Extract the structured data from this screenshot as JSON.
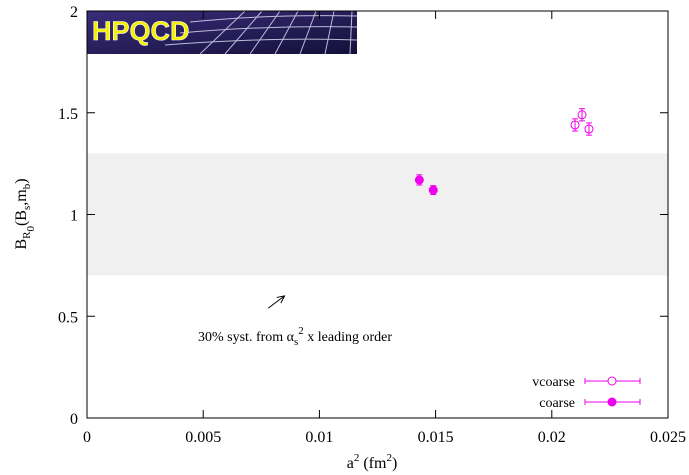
{
  "chart_data": {
    "type": "scatter",
    "title": "",
    "xlabel": {
      "main": "a",
      "sup": "2",
      "unit_open": " (fm",
      "unit_sup": "2",
      "unit_close": ")"
    },
    "ylabel": {
      "main": "B",
      "sub": "R",
      "subsub": "0",
      "args_open": "(B",
      "args_sub1": "s",
      "args_mid": ",m",
      "args_sub2": "b",
      "args_close": ")"
    },
    "xlim": [
      0,
      0.025
    ],
    "ylim": [
      0,
      2
    ],
    "x_ticks": [
      "0",
      "0.005",
      "0.01",
      "0.015",
      "0.02",
      "0.025"
    ],
    "x_tick_values": [
      0,
      0.005,
      0.01,
      0.015,
      0.02,
      0.025
    ],
    "y_ticks": [
      "0",
      "0.5",
      "1",
      "1.5",
      "2"
    ],
    "y_tick_values": [
      0,
      0.5,
      1,
      1.5,
      2
    ],
    "grid": false,
    "legend_position": "bottom-right",
    "band": {
      "y_low": 0.7,
      "y_high": 1.3,
      "color": "#f0f0f0"
    },
    "annotation": {
      "prefix": "30% syst. from ",
      "alpha": "α",
      "alpha_sub": "s",
      "power": "2",
      "suffix": " x leading order",
      "arrow_from": [
        0.0078,
        0.54
      ],
      "arrow_to": [
        0.0085,
        0.6
      ]
    },
    "series": [
      {
        "name": "vcoarse",
        "marker": "open-circle",
        "color": "#ee00ee",
        "points": [
          {
            "x": 0.021,
            "y": 1.44,
            "err": 0.03
          },
          {
            "x": 0.0213,
            "y": 1.49,
            "err": 0.03
          },
          {
            "x": 0.0216,
            "y": 1.42,
            "err": 0.03
          }
        ]
      },
      {
        "name": "coarse",
        "marker": "filled-circle",
        "color": "#ee00ee",
        "points": [
          {
            "x": 0.0143,
            "y": 1.17,
            "err": 0.025
          },
          {
            "x": 0.0149,
            "y": 1.12,
            "err": 0.022
          }
        ]
      }
    ]
  },
  "logo": {
    "text": "HPQCD",
    "background": "#2a2060",
    "text_color": "#f4f000"
  }
}
